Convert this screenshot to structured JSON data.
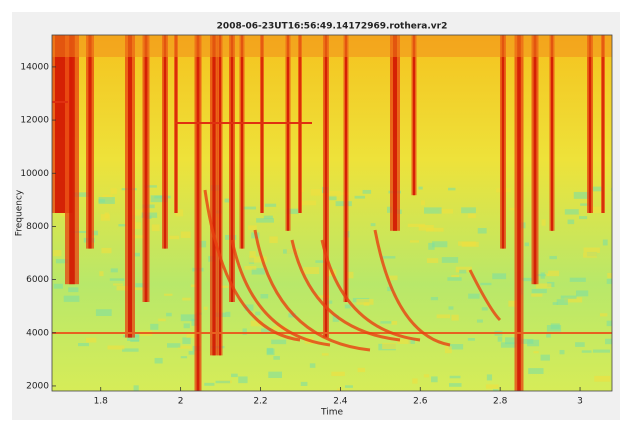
{
  "chart_data": {
    "type": "spectrogram",
    "title": "2008-06-23UT16:56:49.14172969.rothera.vr2",
    "x_label": "Time",
    "y_label": "Frequency",
    "xlim": [
      1.678,
      3.08
    ],
    "xticks": [
      1.8,
      2,
      2.2,
      2.4,
      2.6,
      2.8,
      3
    ],
    "ylim": [
      1810,
      15200
    ],
    "yticks": [
      2000,
      4000,
      6000,
      8000,
      10000,
      12000,
      14000
    ]
  }
}
